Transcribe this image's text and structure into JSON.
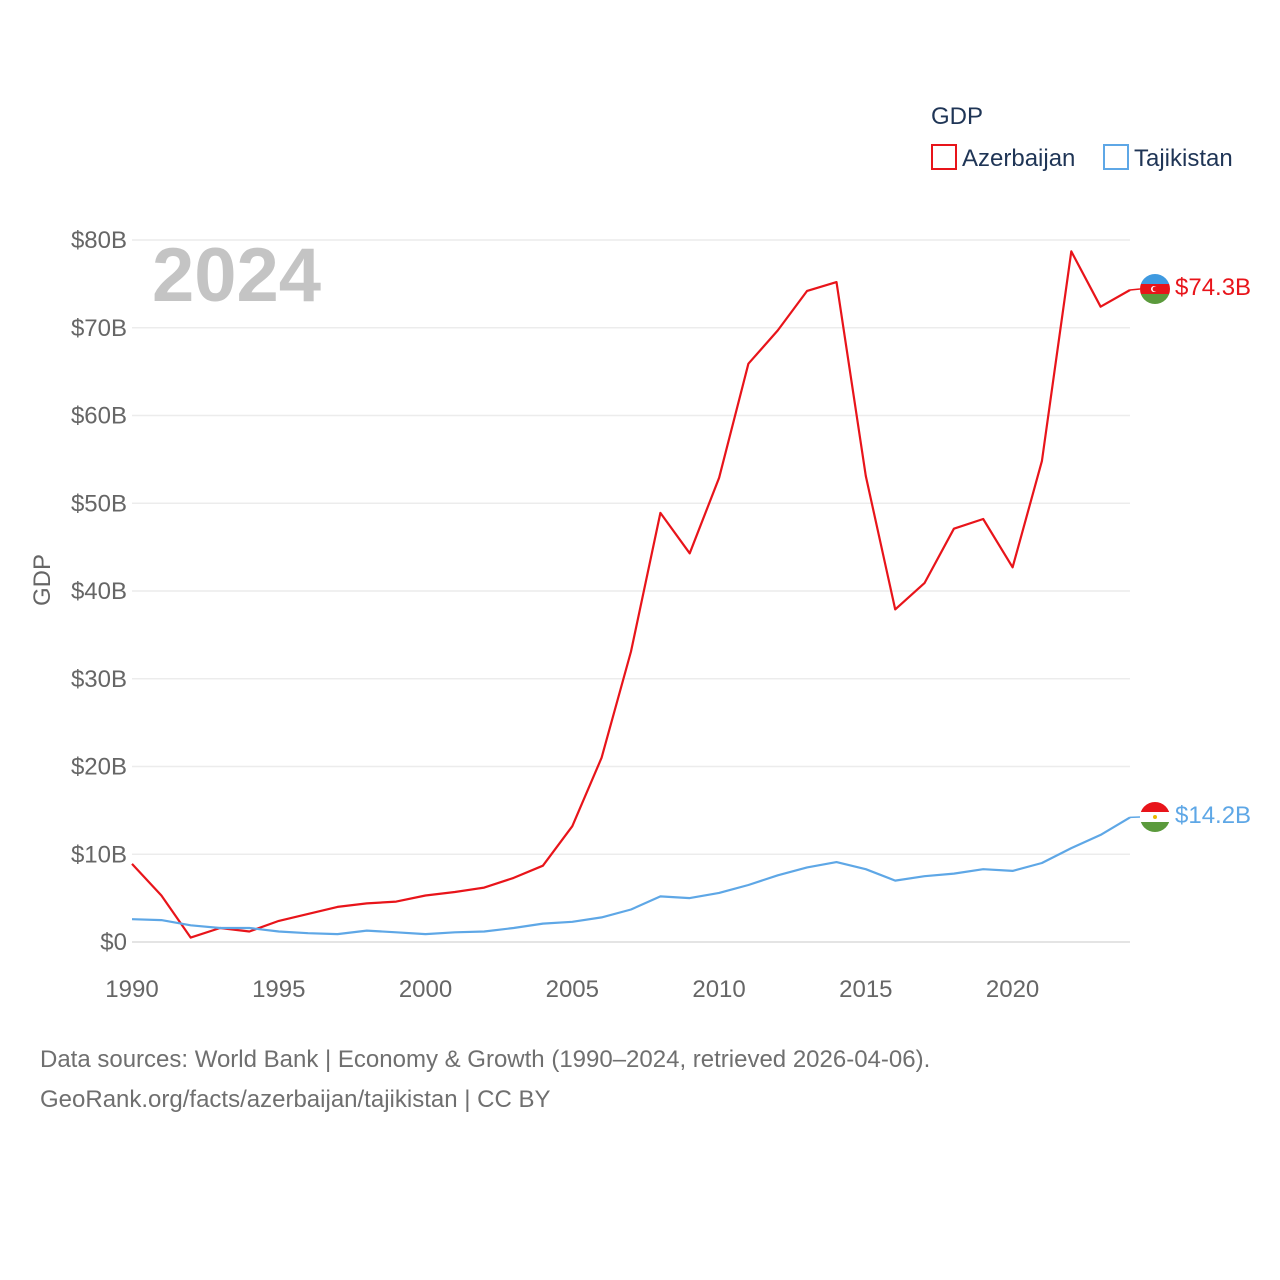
{
  "legend": {
    "title": "GDP",
    "items": [
      {
        "label": "Azerbaijan",
        "color": "#e8141a"
      },
      {
        "label": "Tajikistan",
        "color": "#5ea7e6"
      }
    ]
  },
  "year_label": "2024",
  "end_labels": {
    "azerbaijan": "$74.3B",
    "tajikistan": "$14.2B"
  },
  "sources": {
    "line1": "Data sources: World Bank | Economy & Growth (1990–2024, retrieved 2026-04-06).",
    "line2": "GeoRank.org/facts/azerbaijan/tajikistan | CC BY"
  },
  "chart_data": {
    "type": "line",
    "title": "GDP",
    "xlabel": "",
    "ylabel": "GDP",
    "xlim": [
      1990,
      2024
    ],
    "ylim": [
      0,
      80
    ],
    "y_unit": "billion USD",
    "x_ticks": [
      1990,
      1995,
      2000,
      2005,
      2010,
      2015,
      2020
    ],
    "x_tick_labels": [
      "1990",
      "1995",
      "2000",
      "2005",
      "2010",
      "2015",
      "2020"
    ],
    "y_ticks": [
      0,
      10,
      20,
      30,
      40,
      50,
      60,
      70,
      80
    ],
    "y_tick_labels": [
      "$0",
      "$10B",
      "$20B",
      "$30B",
      "$40B",
      "$50B",
      "$60B",
      "$70B",
      "$80B"
    ],
    "x": [
      1990,
      1991,
      1992,
      1993,
      1994,
      1995,
      1996,
      1997,
      1998,
      1999,
      2000,
      2001,
      2002,
      2003,
      2004,
      2005,
      2006,
      2007,
      2008,
      2009,
      2010,
      2011,
      2012,
      2013,
      2014,
      2015,
      2016,
      2017,
      2018,
      2019,
      2020,
      2021,
      2022,
      2023,
      2024
    ],
    "series": [
      {
        "name": "Azerbaijan",
        "color": "#e8141a",
        "values": [
          8.9,
          5.3,
          0.5,
          1.6,
          1.2,
          2.4,
          3.2,
          4.0,
          4.4,
          4.6,
          5.3,
          5.7,
          6.2,
          7.3,
          8.7,
          13.2,
          21.0,
          33.1,
          48.9,
          44.3,
          52.9,
          65.9,
          69.7,
          74.2,
          75.2,
          53.1,
          37.9,
          40.9,
          47.1,
          48.2,
          42.7,
          54.8,
          78.7,
          72.4,
          74.3
        ]
      },
      {
        "name": "Tajikistan",
        "color": "#5ea7e6",
        "values": [
          2.6,
          2.5,
          1.9,
          1.6,
          1.6,
          1.2,
          1.0,
          0.9,
          1.3,
          1.1,
          0.9,
          1.1,
          1.2,
          1.6,
          2.1,
          2.3,
          2.8,
          3.7,
          5.2,
          5.0,
          5.6,
          6.5,
          7.6,
          8.5,
          9.1,
          8.3,
          7.0,
          7.5,
          7.8,
          8.3,
          8.1,
          9.0,
          10.7,
          12.2,
          14.2
        ]
      }
    ]
  },
  "flags": {
    "azerbaijan": {
      "icon": "azerbaijan-flag-icon",
      "colors": [
        "#3f9ae0",
        "#e8141a",
        "#5b9a3c"
      ]
    },
    "tajikistan": {
      "icon": "tajikistan-flag-icon",
      "colors": [
        "#e8141a",
        "#ffffff",
        "#5b9a3c",
        "#e8b800"
      ]
    }
  }
}
